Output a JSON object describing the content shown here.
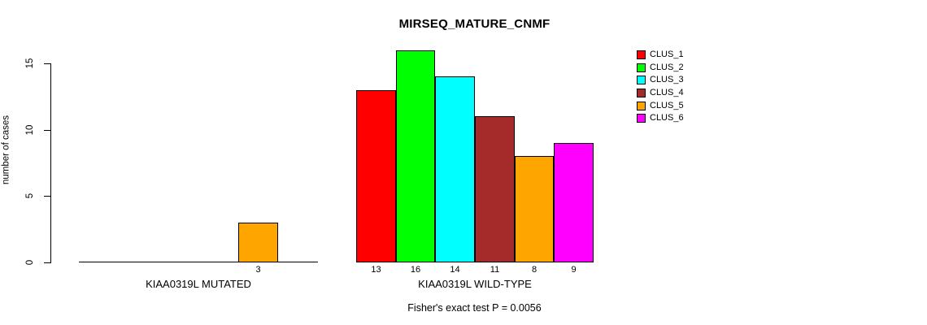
{
  "chart_data": {
    "type": "bar",
    "title": "MIRSEQ_MATURE_CNMF",
    "ylabel": "number of cases",
    "xlabel": "",
    "ylim": [
      0,
      16
    ],
    "yticks": [
      0,
      5,
      10,
      15
    ],
    "grid": false,
    "legend_position": "right",
    "bar_value_labels_shown": "only non-zero values, below baseline",
    "clusters": [
      {
        "name": "CLUS_1",
        "color": "#FF0000"
      },
      {
        "name": "CLUS_2",
        "color": "#00FF00"
      },
      {
        "name": "CLUS_3",
        "color": "#00FFFF"
      },
      {
        "name": "CLUS_4",
        "color": "#A52A2A"
      },
      {
        "name": "CLUS_5",
        "color": "#FFA500"
      },
      {
        "name": "CLUS_6",
        "color": "#FF00FF"
      }
    ],
    "groups": [
      {
        "label": "KIAA0319L MUTATED",
        "values": [
          0,
          0,
          0,
          0,
          3,
          0
        ]
      },
      {
        "label": "KIAA0319L WILD-TYPE",
        "values": [
          13,
          16,
          14,
          11,
          8,
          9
        ]
      }
    ],
    "annotation": "Fisher's exact test P = 0.0056",
    "axis_color": "#000000",
    "background_color": "#FFFFFF"
  }
}
